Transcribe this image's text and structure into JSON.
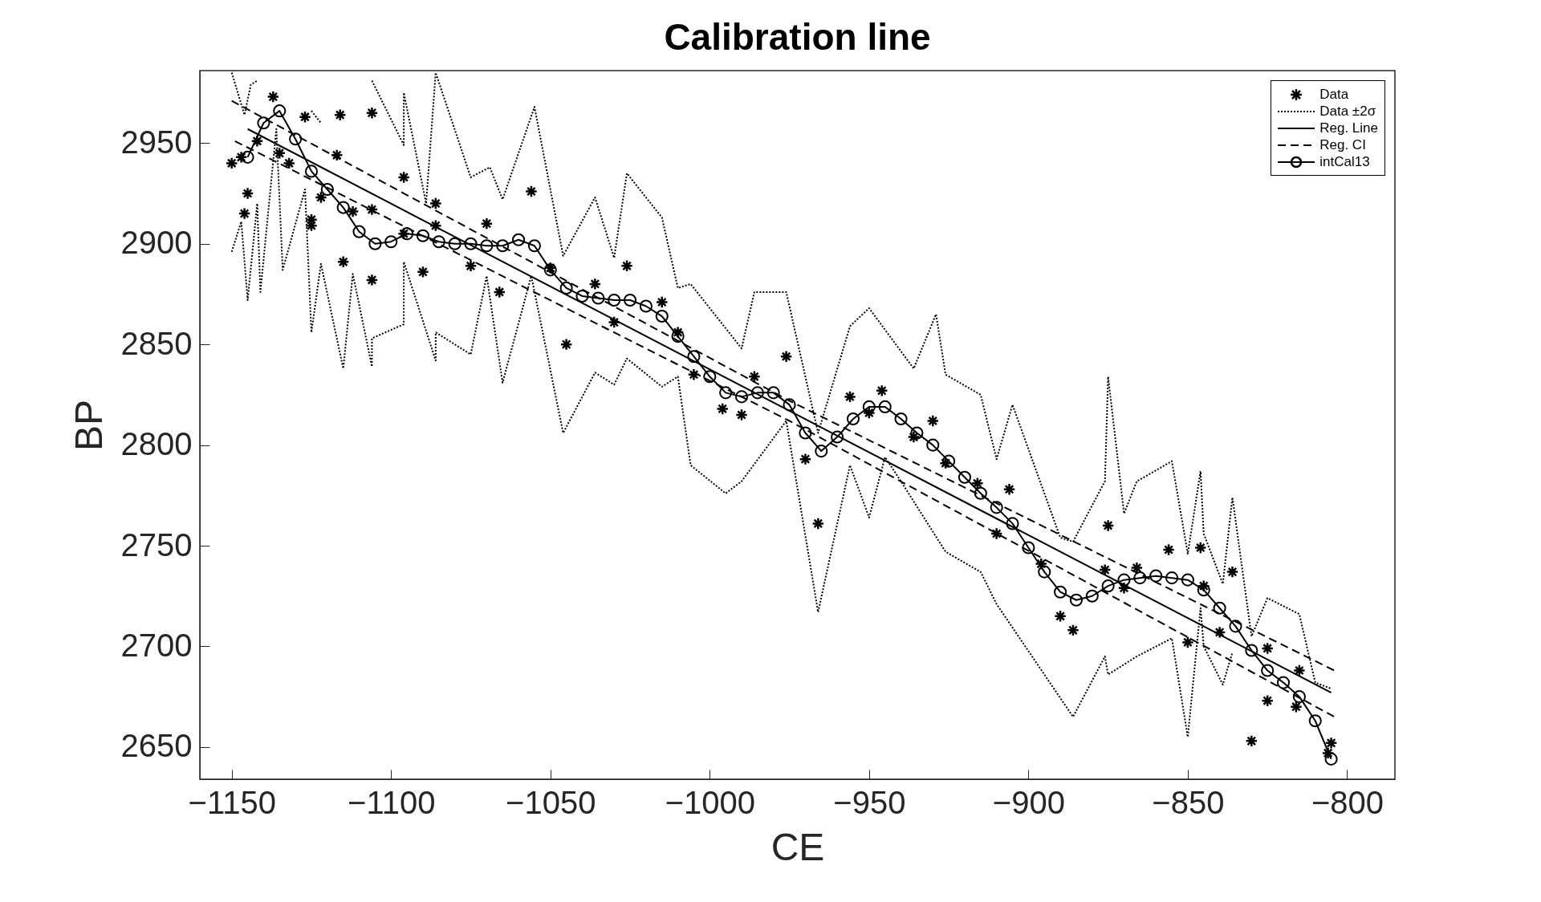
{
  "chart_data": {
    "type": "line",
    "title": "Calibration line",
    "xlabel": "CE",
    "ylabel": "BP",
    "xlim": [
      -1160,
      -785
    ],
    "ylim": [
      2634,
      2986
    ],
    "xticks": [
      -1150,
      -1100,
      -1050,
      -1000,
      -950,
      -900,
      -850,
      -800
    ],
    "yticks": [
      2650,
      2700,
      2750,
      2800,
      2850,
      2900,
      2950
    ],
    "legend": "top right",
    "series": [
      {
        "name": "Data",
        "type": "scatter",
        "color": "#000000",
        "marker": "cross",
        "x": [
          -1150,
          -1147,
          -1145,
          -1146,
          -1142,
          -1137,
          -1135,
          -1132,
          -1127,
          -1125,
          -1125,
          -1122,
          -1117,
          -1116,
          -1115,
          -1112,
          -1106,
          -1106,
          -1106,
          -1096,
          -1096,
          -1090,
          -1086,
          -1086,
          -1075,
          -1070,
          -1066,
          -1056,
          -1050,
          -1045,
          -1036,
          -1030,
          -1026,
          -1015,
          -1010,
          -1005,
          -996,
          -990,
          -986,
          -976,
          -970,
          -966,
          -956,
          -950,
          -946,
          -936,
          -930,
          -926,
          -916,
          -910,
          -906,
          -896,
          -890,
          -886,
          -876,
          -875,
          -870,
          -866,
          -856,
          -850,
          -846,
          -845,
          -840,
          -836,
          -830,
          -825,
          -825,
          -815,
          -816,
          -805,
          -806
        ],
        "values": [
          2940,
          2943,
          2925,
          2915,
          2951,
          2973,
          2945,
          2940,
          2963,
          2912,
          2909,
          2923,
          2944,
          2964,
          2891,
          2916,
          2965,
          2917,
          2882,
          2933,
          2905,
          2886,
          2920,
          2909,
          2889,
          2910,
          2876,
          2926,
          2888,
          2850,
          2880,
          2861,
          2889,
          2871,
          2856,
          2835,
          2818,
          2815,
          2834,
          2844,
          2793,
          2761,
          2824,
          2816,
          2827,
          2804,
          2812,
          2791,
          2781,
          2756,
          2778,
          2741,
          2715,
          2708,
          2738,
          2760,
          2729,
          2739,
          2748,
          2702,
          2749,
          2730,
          2707,
          2737,
          2653,
          2699,
          2673,
          2688,
          2670,
          2652,
          2647
        ]
      },
      {
        "name": "Data ±2σ",
        "color": "#000000",
        "line_style": "dotted",
        "x": [
          -1150,
          -1146,
          -1144,
          -1142,
          -1141,
          -1132,
          -1125,
          -1122,
          -1117,
          -1106,
          -1096,
          -1096,
          -1089,
          -1086,
          -1075,
          -1069,
          -1065,
          -1055,
          -1046,
          -1036,
          -1030,
          -1026,
          -1015,
          -1010,
          -1006,
          -990,
          -986,
          -976,
          -966,
          -956,
          -950,
          -936,
          -929,
          -926,
          -915,
          -910,
          -905,
          -890,
          -886,
          -876,
          -875,
          -870,
          -866,
          -855,
          -850,
          -846,
          -845,
          -839,
          -836,
          -830,
          -825,
          -815,
          -810,
          -805
        ],
        "values": [
          2985,
          2964,
          2979,
          2981,
          null,
          null,
          2966,
          2960,
          null,
          2981,
          2949,
          2975,
          2920,
          2985,
          2933,
          2938,
          2922,
          2968,
          2894,
          2923,
          2893,
          2935,
          2913,
          2878,
          2880,
          2848,
          2876,
          2876,
          2806,
          2859,
          2868,
          2838,
          2865,
          2835,
          2825,
          2793,
          2820,
          2754,
          2752,
          2782,
          2834,
          2766,
          2782,
          2792,
          2746,
          2787,
          2756,
          2731,
          2774,
          2705,
          2724,
          2716,
          2682,
          2679
        ]
      },
      {
        "color": "#000000",
        "line_style": "dotted",
        "x": [
          -1150,
          -1147,
          -1145,
          -1142,
          -1141,
          -1136,
          -1134,
          -1127,
          -1125,
          -1122,
          -1115,
          -1112,
          -1106,
          -1106,
          -1096,
          -1096,
          -1086,
          -1086,
          -1075,
          -1070,
          -1065,
          -1056,
          -1046,
          -1036,
          -1030,
          -1026,
          -1015,
          -1010,
          -1006,
          -995,
          -990,
          -976,
          -966,
          -956,
          -950,
          -945,
          -940,
          -926,
          -915,
          -910,
          -886,
          -876,
          -875,
          -866,
          -855,
          -850,
          -846,
          -845,
          -839,
          -836
        ],
        "values": [
          2896,
          2911,
          2872,
          2920,
          2876,
          2957,
          2887,
          2927,
          2856,
          2890,
          2838,
          2885,
          2839,
          2853,
          2860,
          2891,
          2842,
          2856,
          2845,
          2884,
          2831,
          2884,
          2806,
          2836,
          2830,
          2843,
          2829,
          2834,
          2790,
          2776,
          2782,
          2812,
          2717,
          2790,
          2764,
          2794,
          2782,
          2747,
          2737,
          2721,
          2665,
          2695,
          2686,
          2695,
          2704,
          2655,
          2719,
          2700,
          2681,
          2697
        ]
      },
      {
        "name": "Reg. Line",
        "color": "#000000",
        "line_style": "solid",
        "x": [
          -1145,
          -805
        ],
        "values": [
          2957,
          2677
        ]
      },
      {
        "name": "Reg. CI",
        "color": "#000000",
        "line_style": "dashed",
        "x": [
          -1150,
          -975,
          -804
        ],
        "values": [
          2971,
          2822,
          2688
        ]
      },
      {
        "color": "#000000",
        "line_style": "dashed",
        "x": [
          -1149,
          -975,
          -804
        ],
        "values": [
          2951,
          2812,
          2665
        ]
      },
      {
        "name": "intCal13",
        "color": "#000000",
        "line_style": "solid",
        "marker": "circle",
        "x": [
          -1145,
          -1140,
          -1135,
          -1130,
          -1125,
          -1120,
          -1115,
          -1110,
          -1105,
          -1100,
          -1095,
          -1090,
          -1085,
          -1080,
          -1075,
          -1070,
          -1065,
          -1060,
          -1055,
          -1050,
          -1045,
          -1040,
          -1035,
          -1030,
          -1025,
          -1020,
          -1015,
          -1010,
          -1005,
          -1000,
          -995,
          -990,
          -985,
          -980,
          -975,
          -970,
          -965,
          -960,
          -955,
          -950,
          -945,
          -940,
          -935,
          -930,
          -925,
          -920,
          -915,
          -910,
          -905,
          -900,
          -895,
          -890,
          -885,
          -880,
          -875,
          -870,
          -865,
          -860,
          -855,
          -850,
          -845,
          -840,
          -835,
          -830,
          -825,
          -820,
          -815,
          -810,
          -805
        ],
        "values": [
          2943,
          2960,
          2966,
          2952,
          2936,
          2927,
          2918,
          2906,
          2900,
          2901,
          2905,
          2904,
          2901,
          2900,
          2900,
          2899,
          2899,
          2902,
          2899,
          2887,
          2878,
          2874,
          2873,
          2872,
          2872,
          2869,
          2864,
          2854,
          2844,
          2834,
          2826,
          2824,
          2826,
          2826,
          2820,
          2806,
          2797,
          2804,
          2813,
          2819,
          2819,
          2813,
          2806,
          2800,
          2792,
          2784,
          2776,
          2769,
          2761,
          2749,
          2737,
          2727,
          2723,
          2725,
          2730,
          2733,
          2734,
          2735,
          2734,
          2733,
          2728,
          2719,
          2710,
          2698,
          2688,
          2682,
          2675,
          2663,
          2644
        ]
      }
    ]
  }
}
